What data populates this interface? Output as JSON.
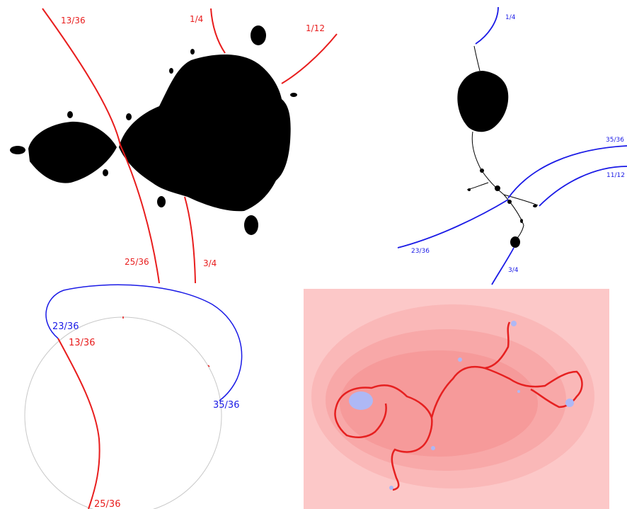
{
  "colors": {
    "red_ray": "#e81d1d",
    "blue_ray": "#1a1ae6",
    "fill": "#000000",
    "circle": "#c8c8c8",
    "pink_bg": "#fbbcbc",
    "pink_mid": "#f58f8f",
    "blue_spot": "#aeb8f5"
  },
  "panel_top_left": {
    "labels": {
      "a": "13/36",
      "b": "1/4",
      "c": "1/12",
      "d": "25/36",
      "e": "3/4"
    }
  },
  "panel_top_right": {
    "labels": {
      "a": "1/4",
      "b": "35/36",
      "c": "11/12",
      "d": "23/36",
      "e": "3/4"
    }
  },
  "panel_bottom_left": {
    "labels": {
      "a": "23/36",
      "b": "13/36",
      "c": "35/36",
      "d": "25/36"
    }
  },
  "panel_bottom_right": {
    "description_icons": [
      "julia-set-shading"
    ]
  }
}
